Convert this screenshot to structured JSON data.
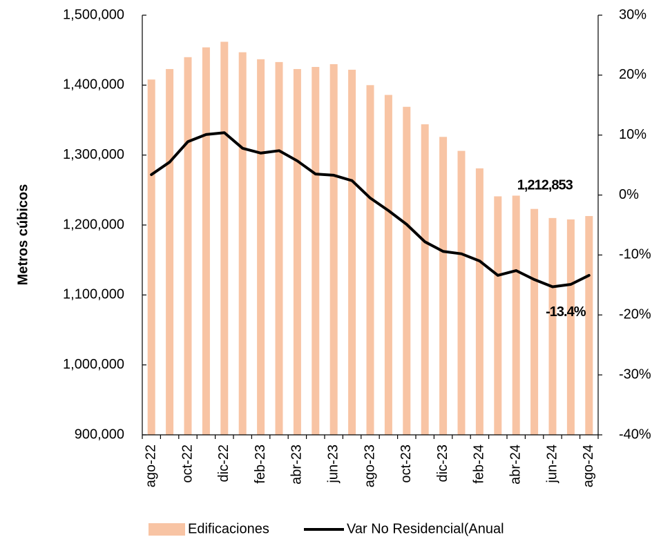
{
  "chart_data": {
    "type": "bar_line",
    "y_label": "Metros cúbicos",
    "categories": [
      "ago-22",
      null,
      "oct-22",
      null,
      "dic-22",
      null,
      "feb-23",
      null,
      "abr-23",
      null,
      "jun-23",
      null,
      "ago-23",
      null,
      "oct-23",
      null,
      "dic-23",
      null,
      "feb-24",
      null,
      "abr-24",
      null,
      "jun-24",
      null,
      "ago-24"
    ],
    "series": [
      {
        "name": "Edificaciones",
        "type": "bar",
        "color": "#f8c4a4",
        "values": [
          1408000,
          1423000,
          1440000,
          1454000,
          1462000,
          1447000,
          1437000,
          1433000,
          1423000,
          1426000,
          1430000,
          1422000,
          1400000,
          1386000,
          1369000,
          1344000,
          1326000,
          1306000,
          1281000,
          1241000,
          1242000,
          1223000,
          1210000,
          1208000,
          1212853
        ],
        "value_labels": [
          null,
          null,
          null,
          null,
          null,
          null,
          null,
          null,
          null,
          null,
          null,
          null,
          null,
          null,
          null,
          null,
          null,
          null,
          null,
          null,
          null,
          null,
          null,
          null,
          "1,212,853"
        ]
      },
      {
        "name": "Var No Residencial(Anual",
        "type": "line",
        "axis": "y2",
        "color": "#000000",
        "values": [
          3.4,
          5.5,
          8.9,
          10.1,
          10.4,
          7.8,
          7.0,
          7.4,
          5.7,
          3.5,
          3.3,
          2.4,
          -0.5,
          -2.6,
          -4.9,
          -7.8,
          -9.4,
          -9.8,
          -11.0,
          -13.4,
          -12.6,
          -14.1,
          -15.3,
          -14.9,
          -13.4
        ],
        "value_labels": [
          null,
          null,
          null,
          null,
          null,
          null,
          null,
          null,
          null,
          null,
          null,
          null,
          null,
          null,
          null,
          null,
          null,
          null,
          null,
          null,
          null,
          null,
          null,
          null,
          "-13.4%"
        ]
      }
    ],
    "ylim": [
      900000,
      1500000
    ],
    "yticks": [
      {
        "value": 900000,
        "label": "900,000"
      },
      {
        "value": 1000000,
        "label": "1,000,000"
      },
      {
        "value": 1100000,
        "label": "1,100,000"
      },
      {
        "value": 1200000,
        "label": "1,200,000"
      },
      {
        "value": 1300000,
        "label": "1,300,000"
      },
      {
        "value": 1400000,
        "label": "1,400,000"
      },
      {
        "value": 1500000,
        "label": "1,500,000"
      }
    ],
    "y2lim": [
      -40,
      30
    ],
    "y2ticks": [
      {
        "value": -40,
        "label": "-40%"
      },
      {
        "value": -30,
        "label": "-30%"
      },
      {
        "value": -20,
        "label": "-20%"
      },
      {
        "value": -10,
        "label": "-10%"
      },
      {
        "value": 0,
        "label": "0%"
      },
      {
        "value": 10,
        "label": "10%"
      },
      {
        "value": 20,
        "label": "20%"
      },
      {
        "value": 30,
        "label": "30%"
      }
    ],
    "legend": "bottom"
  }
}
